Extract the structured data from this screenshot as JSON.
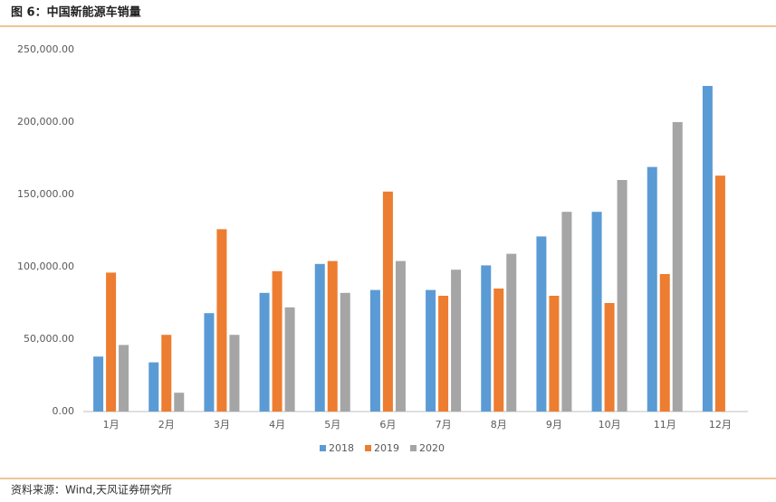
{
  "chart_data": {
    "type": "bar",
    "title": "图 6：中国新能源车销量",
    "source": "资料来源：Wind,天风证券研究所",
    "categories": [
      "1月",
      "2月",
      "3月",
      "4月",
      "5月",
      "6月",
      "7月",
      "8月",
      "9月",
      "10月",
      "11月",
      "12月"
    ],
    "series": [
      {
        "name": "2018",
        "color": "#5b9bd5",
        "values": [
          38000,
          34000,
          68000,
          82000,
          102000,
          84000,
          84000,
          101000,
          121000,
          138000,
          169000,
          225000
        ]
      },
      {
        "name": "2019",
        "color": "#ed7d31",
        "values": [
          96000,
          53000,
          126000,
          97000,
          104000,
          152000,
          80000,
          85000,
          80000,
          75000,
          95000,
          163000
        ]
      },
      {
        "name": "2020",
        "color": "#a5a5a5",
        "values": [
          46000,
          13000,
          53000,
          72000,
          82000,
          104000,
          98000,
          109000,
          138000,
          160000,
          200000,
          null
        ]
      }
    ],
    "ylim": [
      0,
      250000
    ],
    "yticks": [
      {
        "value": 0,
        "label": "0.00"
      },
      {
        "value": 50000,
        "label": "50,000.00"
      },
      {
        "value": 100000,
        "label": "100,000.00"
      },
      {
        "value": 150000,
        "label": "150,000.00"
      },
      {
        "value": 200000,
        "label": "200,000.00"
      },
      {
        "value": 250000,
        "label": "250,000.00"
      }
    ],
    "grid": false,
    "legend": "bottom"
  }
}
